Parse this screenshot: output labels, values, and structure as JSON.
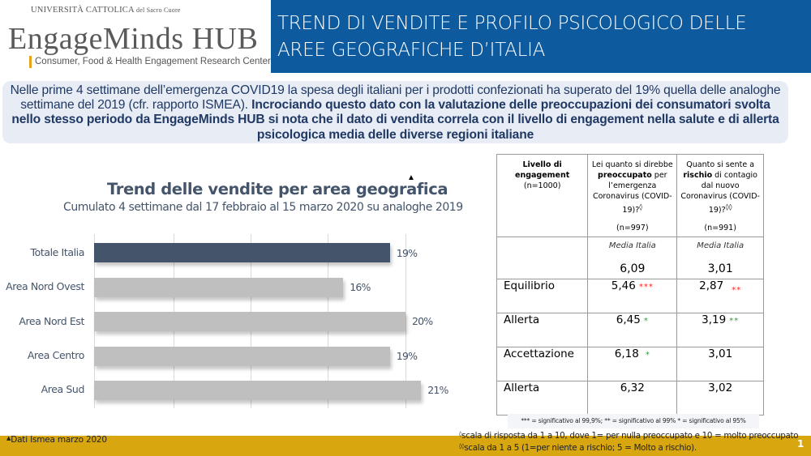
{
  "header": {
    "university": "UNIVERSITÀ CATTOLICA",
    "university_suffix": "del Sacro Cuore",
    "brand": "EngageMinds HUB",
    "tagline": "Consumer, Food & Health Engagement Research Center",
    "title_line1": "TREND DI VENDITE E PROFILO PSICOLOGICO DELLE",
    "title_line2": "AREE GEOGRAFICHE D’ITALIA"
  },
  "intro": {
    "plain": "Nelle prime 4 settimane dell’emergenza COVID19 la spesa degli italiani per i prodotti confezionati ha superato del 19% quella delle analoghe settimane del 2019 (cfr. rapporto ISMEA). ",
    "bold": "Incrociando questo dato con la valutazione delle preoccupazioni dei consumatori svolta nello stesso periodo da EngageMinds HUB si nota che il dato di vendita correla con il livello di engagement nella salute e di allerta psicologica media delle diverse regioni italiane"
  },
  "chart_data": {
    "type": "bar",
    "orientation": "horizontal",
    "title": "Trend delle vendite per area geografica",
    "title_marker": "▲",
    "subtitle": "Cumulato 4 settimane dal 17 febbraio al 15 marzo 2020 su analoghe 2019",
    "categories": [
      "Totale Italia",
      "Area Nord Ovest",
      "Area Nord Est",
      "Area Centro",
      "Area Sud"
    ],
    "values": [
      19,
      16,
      20,
      19,
      21
    ],
    "labels": [
      "19%",
      "16%",
      "20%",
      "19%",
      "21%"
    ],
    "unit": "%",
    "xlim": [
      0,
      20
    ],
    "grid": true,
    "colors": [
      "#44546a",
      "#bfbfbf",
      "#bfbfbf",
      "#bfbfbf",
      "#bfbfbf"
    ],
    "xlabel": "",
    "ylabel": ""
  },
  "table": {
    "col1_header_bold": "Livello di engagement",
    "col1_header_n": "(n=1000)",
    "col2_header_pre": "Lei quanto si direbbe ",
    "col2_header_bold": "preoccupato",
    "col2_header_post": " per l’emergenza Coronavirus (COVID-19)?",
    "col2_header_mark": "◊",
    "col2_header_n": "(n=997)",
    "col3_header_pre": "Quanto si sente a ",
    "col3_header_bold": "rischio",
    "col3_header_post": " di contagio dal nuovo Coronavirus (COVID-19)?",
    "col3_header_mark": "◊◊",
    "col3_header_n": "(n=991)",
    "media_label": "Media Italia",
    "media_col2": "6,09",
    "media_col3": "3,01",
    "rows": [
      {
        "label": "Equilibrio",
        "col2": "5,46",
        "col2_sig": "***",
        "col2_sig_color": "#ff2020",
        "col3": "2,87",
        "col3_sig": "**",
        "col3_sig_color": "#ff2020"
      },
      {
        "label": "Allerta",
        "col2": "6,45",
        "col2_sig": "*",
        "col2_sig_color": "#2e9a3a",
        "col3": "3,19",
        "col3_sig": "**",
        "col3_sig_color": "#2e9a3a"
      },
      {
        "label": "Accettazione",
        "col2": "6,18",
        "col2_sig": "*",
        "col2_sig_color": "#2e9a3a",
        "col3": "3,01",
        "col3_sig": "",
        "col3_sig_color": ""
      },
      {
        "label": "Allerta",
        "col2": "6,32",
        "col2_sig": "",
        "col2_sig_color": "",
        "col3": "3,02",
        "col3_sig": "",
        "col3_sig_color": ""
      }
    ],
    "legend": "*** = significativo al 99,9%;  ** = significativo al 99% * = significativo al 95%"
  },
  "footer": {
    "source_marker": "▲",
    "source": "Dati Ismea marzo 2020",
    "note1_mark": "◊",
    "note1": "scala di risposta da 1 a 10, dove 1= per nulla preoccupato e 10 = molto preoccupato",
    "note2_mark": "◊◊",
    "note2": "scala da 1 a 5 (1=per niente a rischio; 5 = Molto a rischio).",
    "page_number": "1"
  },
  "colors": {
    "title_bar": "#0d5a9e",
    "footer_bar": "#d8a60f",
    "intro_bg": "#e8edf5",
    "text_navy": "#1f3864",
    "bar_highlight": "#44546a",
    "bar_default": "#bfbfbf"
  }
}
